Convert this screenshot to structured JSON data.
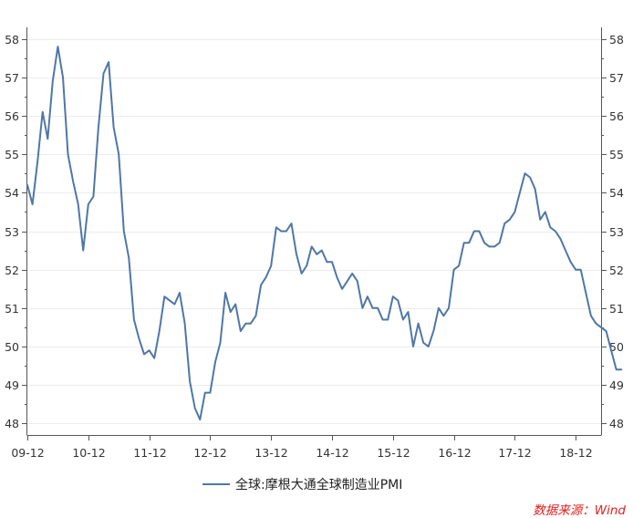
{
  "colors": {
    "series": "#4F77A6",
    "source": "#E0211C"
  },
  "source_label": "数据来源：Wind",
  "chart_data": {
    "type": "line",
    "title": "",
    "xlabel": "",
    "ylabel": "",
    "ylim": [
      47.7,
      58.3
    ],
    "yticks": [
      48,
      49,
      50,
      51,
      52,
      53,
      54,
      55,
      56,
      57,
      58
    ],
    "ytick_labels_left": [
      "48",
      "49",
      "50",
      "51",
      "52",
      "53",
      "54",
      "55",
      "56",
      "57",
      "58"
    ],
    "ytick_labels_right": [
      "48",
      "49",
      "50",
      "51",
      "52",
      "53",
      "54",
      "55",
      "56",
      "57",
      "58"
    ],
    "xrange": [
      0,
      113
    ],
    "xtick_positions": [
      0,
      12,
      24,
      36,
      48,
      60,
      72,
      84,
      96,
      108
    ],
    "xtick_labels": [
      "09-12",
      "10-12",
      "11-12",
      "12-12",
      "13-12",
      "14-12",
      "15-12",
      "16-12",
      "17-12",
      "18-12"
    ],
    "grid": true,
    "legend_placement": "bottom-center",
    "series": [
      {
        "name": "全球:摩根大通全球制造业PMI",
        "values": [
          54.2,
          53.7,
          54.8,
          56.1,
          55.4,
          56.9,
          57.8,
          57.0,
          55.0,
          54.3,
          53.7,
          52.5,
          53.7,
          53.9,
          55.7,
          57.1,
          57.4,
          55.7,
          55.0,
          53.0,
          52.3,
          50.7,
          50.2,
          49.8,
          49.9,
          49.7,
          50.4,
          51.3,
          51.2,
          51.1,
          51.4,
          50.6,
          49.1,
          48.4,
          48.1,
          48.8,
          48.8,
          49.6,
          50.1,
          51.4,
          50.9,
          51.1,
          50.4,
          50.6,
          50.6,
          50.8,
          51.6,
          51.8,
          52.1,
          53.1,
          53.0,
          53.0,
          53.2,
          52.4,
          51.9,
          52.1,
          52.6,
          52.4,
          52.5,
          52.2,
          52.2,
          51.8,
          51.5,
          51.7,
          51.9,
          51.7,
          51.0,
          51.3,
          51.0,
          51.0,
          50.7,
          50.7,
          51.3,
          51.2,
          50.7,
          50.9,
          50.0,
          50.6,
          50.1,
          50.0,
          50.4,
          51.0,
          50.8,
          51.0,
          52.0,
          52.1,
          52.7,
          52.7,
          53.0,
          53.0,
          52.7,
          52.6,
          52.6,
          52.7,
          53.2,
          53.3,
          53.5,
          54.0,
          54.5,
          54.4,
          54.1,
          53.3,
          53.5,
          53.1,
          53.0,
          52.8,
          52.5,
          52.2,
          52.0,
          52.0,
          51.4,
          50.8,
          50.6,
          50.5,
          50.4,
          49.9,
          49.4,
          49.4
        ]
      }
    ]
  }
}
